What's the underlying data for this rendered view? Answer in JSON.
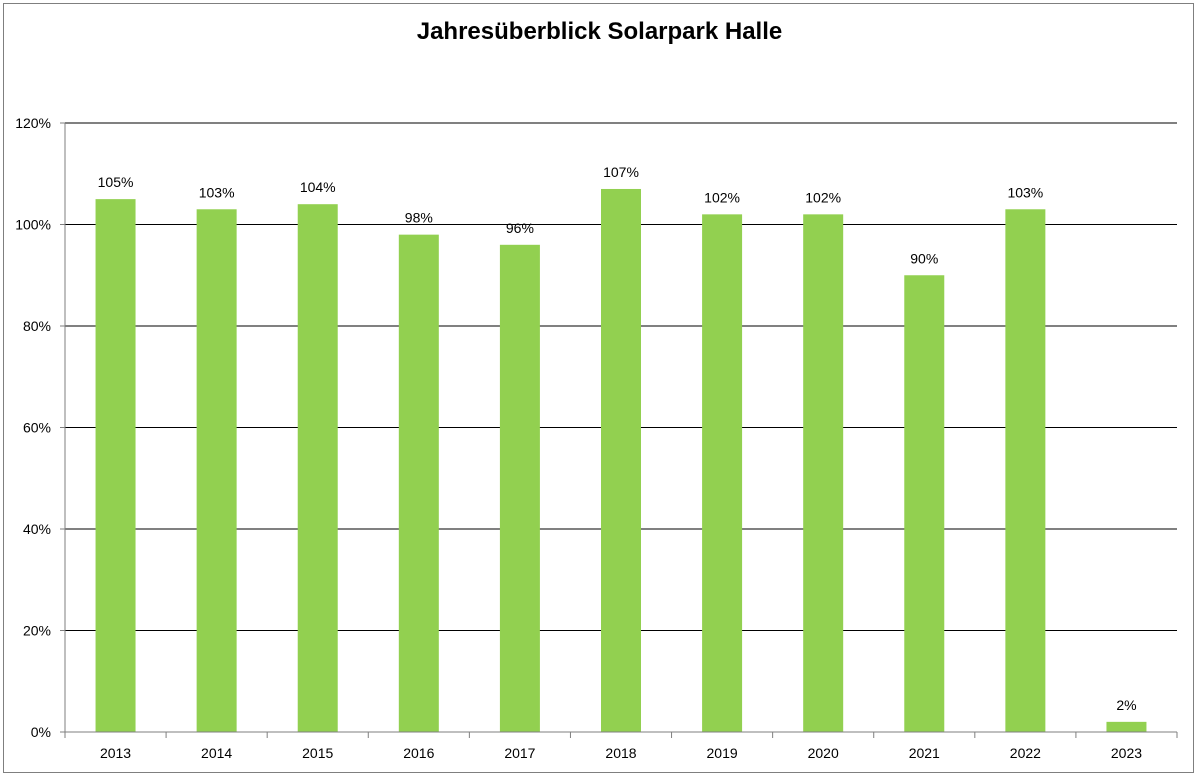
{
  "chart_data": {
    "type": "bar",
    "title": "Jahresüberblick Solarpark Halle",
    "categories": [
      "2013",
      "2014",
      "2015",
      "2016",
      "2017",
      "2018",
      "2019",
      "2020",
      "2021",
      "2022",
      "2023"
    ],
    "values": [
      105,
      103,
      104,
      98,
      96,
      107,
      102,
      102,
      90,
      103,
      2
    ],
    "data_labels": [
      "105%",
      "103%",
      "104%",
      "98%",
      "96%",
      "107%",
      "102%",
      "102%",
      "90%",
      "103%",
      "2%"
    ],
    "y_ticks": [
      "0%",
      "20%",
      "40%",
      "60%",
      "80%",
      "100%",
      "120%"
    ],
    "y_tick_values": [
      0,
      20,
      40,
      60,
      80,
      100,
      120
    ],
    "ylim": [
      0,
      120
    ],
    "xlabel": "",
    "ylabel": "",
    "grid": true,
    "legend": "none",
    "colors": {
      "bar": "#92d050",
      "grid": "#000000",
      "axis": "#7f7f7f"
    }
  }
}
